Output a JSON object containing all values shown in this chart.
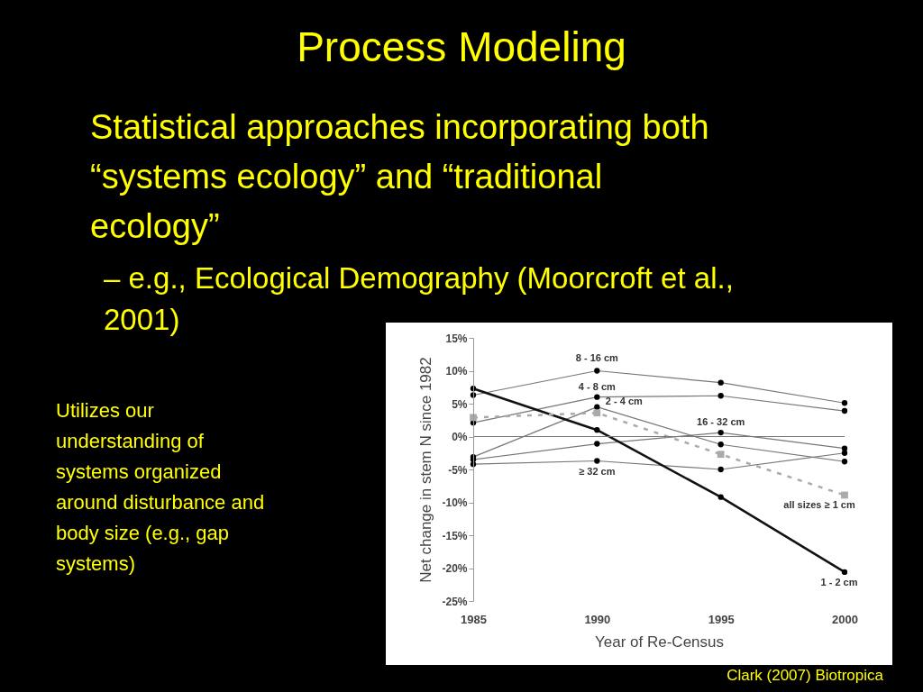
{
  "chart_data": {
    "type": "line",
    "title": "Process Modeling",
    "xlabel": "Year of Re-Census",
    "ylabel": "Net change in stem N since 1982",
    "x": [
      1985,
      1990,
      1995,
      2000
    ],
    "xlim": [
      1985,
      2000
    ],
    "xticks": [
      1985,
      1990,
      1995,
      2000
    ],
    "ylim": [
      -25,
      15
    ],
    "yticks": [
      {
        "value": -25,
        "label": "-25%"
      },
      {
        "value": -20,
        "label": "-20%"
      },
      {
        "value": -15,
        "label": "-15%"
      },
      {
        "value": -10,
        "label": "-10%"
      },
      {
        "value": -5,
        "label": "-5%"
      },
      {
        "value": 0,
        "label": "0%"
      },
      {
        "value": 5,
        "label": "5%"
      },
      {
        "value": 10,
        "label": "10%"
      },
      {
        "value": 15,
        "label": "15%"
      }
    ],
    "grid": false,
    "marker": "circle",
    "line_style": "solid",
    "ref_lines": [
      {
        "axis": "y",
        "value": 0,
        "color": "#777777"
      }
    ],
    "series": [
      {
        "name": "8 - 16 cm",
        "color": "#777777",
        "values": [
          6.3,
          10.0,
          8.2,
          5.1
        ]
      },
      {
        "name": "4 - 8 cm",
        "color": "#777777",
        "values": [
          2.1,
          6.0,
          6.2,
          3.9
        ]
      },
      {
        "name": "2 - 4 cm",
        "color": "#777777",
        "values": [
          -3.1,
          4.5,
          -1.2,
          -3.8
        ]
      },
      {
        "name": "16 - 32 cm",
        "color": "#777777",
        "values": [
          -3.5,
          -1.1,
          0.6,
          -1.8
        ]
      },
      {
        "name": "≥ 32 cm",
        "color": "#777777",
        "values": [
          -4.2,
          -3.7,
          -5.0,
          -2.5
        ]
      },
      {
        "name": "1 - 2 cm",
        "color": "#111111",
        "values": [
          7.3,
          1.0,
          -9.2,
          -20.6
        ]
      },
      {
        "name": "all sizes ≥ 1 cm",
        "color": "#aaaaaa",
        "values": [
          2.9,
          3.6,
          -2.7,
          -8.9
        ],
        "marker": "square",
        "line_style": "dashed"
      }
    ],
    "annotations": [
      "Statistical approaches incorporating both “systems ecology” and “traditional ecology”",
      "– e.g., Ecological Demography (Moorcroft et al., 2001)",
      "Utilizes our understanding of systems organized around disturbance and body size (e.g., gap systems)",
      "Clark (2007) Biotropica"
    ]
  }
}
